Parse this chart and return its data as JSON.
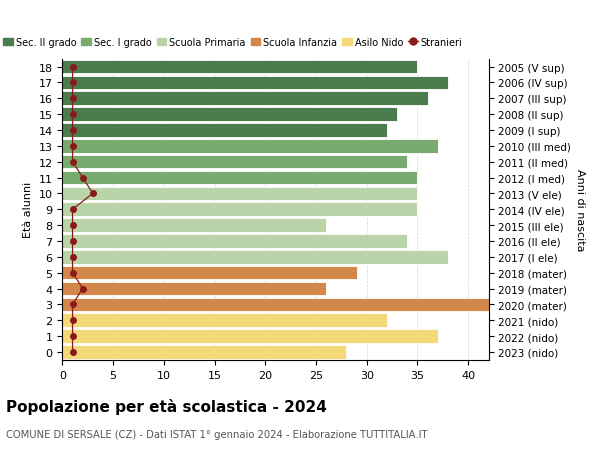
{
  "ages": [
    18,
    17,
    16,
    15,
    14,
    13,
    12,
    11,
    10,
    9,
    8,
    7,
    6,
    5,
    4,
    3,
    2,
    1,
    0
  ],
  "values": [
    35,
    38,
    36,
    33,
    32,
    37,
    34,
    35,
    35,
    35,
    26,
    34,
    38,
    29,
    26,
    42,
    32,
    37,
    28
  ],
  "stranieri": [
    1,
    1,
    1,
    1,
    1,
    1,
    1,
    2,
    3,
    1,
    1,
    1,
    1,
    1,
    2,
    1,
    1,
    1,
    1
  ],
  "right_labels": [
    "2005 (V sup)",
    "2006 (IV sup)",
    "2007 (III sup)",
    "2008 (II sup)",
    "2009 (I sup)",
    "2010 (III med)",
    "2011 (II med)",
    "2012 (I med)",
    "2013 (V ele)",
    "2014 (IV ele)",
    "2015 (III ele)",
    "2016 (II ele)",
    "2017 (I ele)",
    "2018 (mater)",
    "2019 (mater)",
    "2020 (mater)",
    "2021 (nido)",
    "2022 (nido)",
    "2023 (nido)"
  ],
  "bar_colors": [
    "#4a7c4e",
    "#4a7c4e",
    "#4a7c4e",
    "#4a7c4e",
    "#4a7c4e",
    "#7aab6e",
    "#7aab6e",
    "#7aab6e",
    "#b8d4a8",
    "#b8d4a8",
    "#b8d4a8",
    "#b8d4a8",
    "#b8d4a8",
    "#d4874a",
    "#d4874a",
    "#d4874a",
    "#f5d87a",
    "#f5d87a",
    "#f5d87a"
  ],
  "legend_labels": [
    "Sec. II grado",
    "Sec. I grado",
    "Scuola Primaria",
    "Scuola Infanzia",
    "Asilo Nido",
    "Stranieri"
  ],
  "legend_colors": [
    "#4a7c4e",
    "#7aab6e",
    "#b8d4a8",
    "#d4874a",
    "#f5d87a",
    "#8b1a1a"
  ],
  "title": "Popolazione per età scolastica - 2024",
  "subtitle": "COMUNE DI SERSALE (CZ) - Dati ISTAT 1° gennaio 2024 - Elaborazione TUTTITALIA.IT",
  "ylabel_left": "Età alunni",
  "ylabel_right": "Anni di nascita",
  "xlim": [
    0,
    42
  ],
  "xticks": [
    0,
    5,
    10,
    15,
    20,
    25,
    30,
    35,
    40
  ],
  "figsize": [
    6.0,
    4.6
  ],
  "dpi": 100
}
